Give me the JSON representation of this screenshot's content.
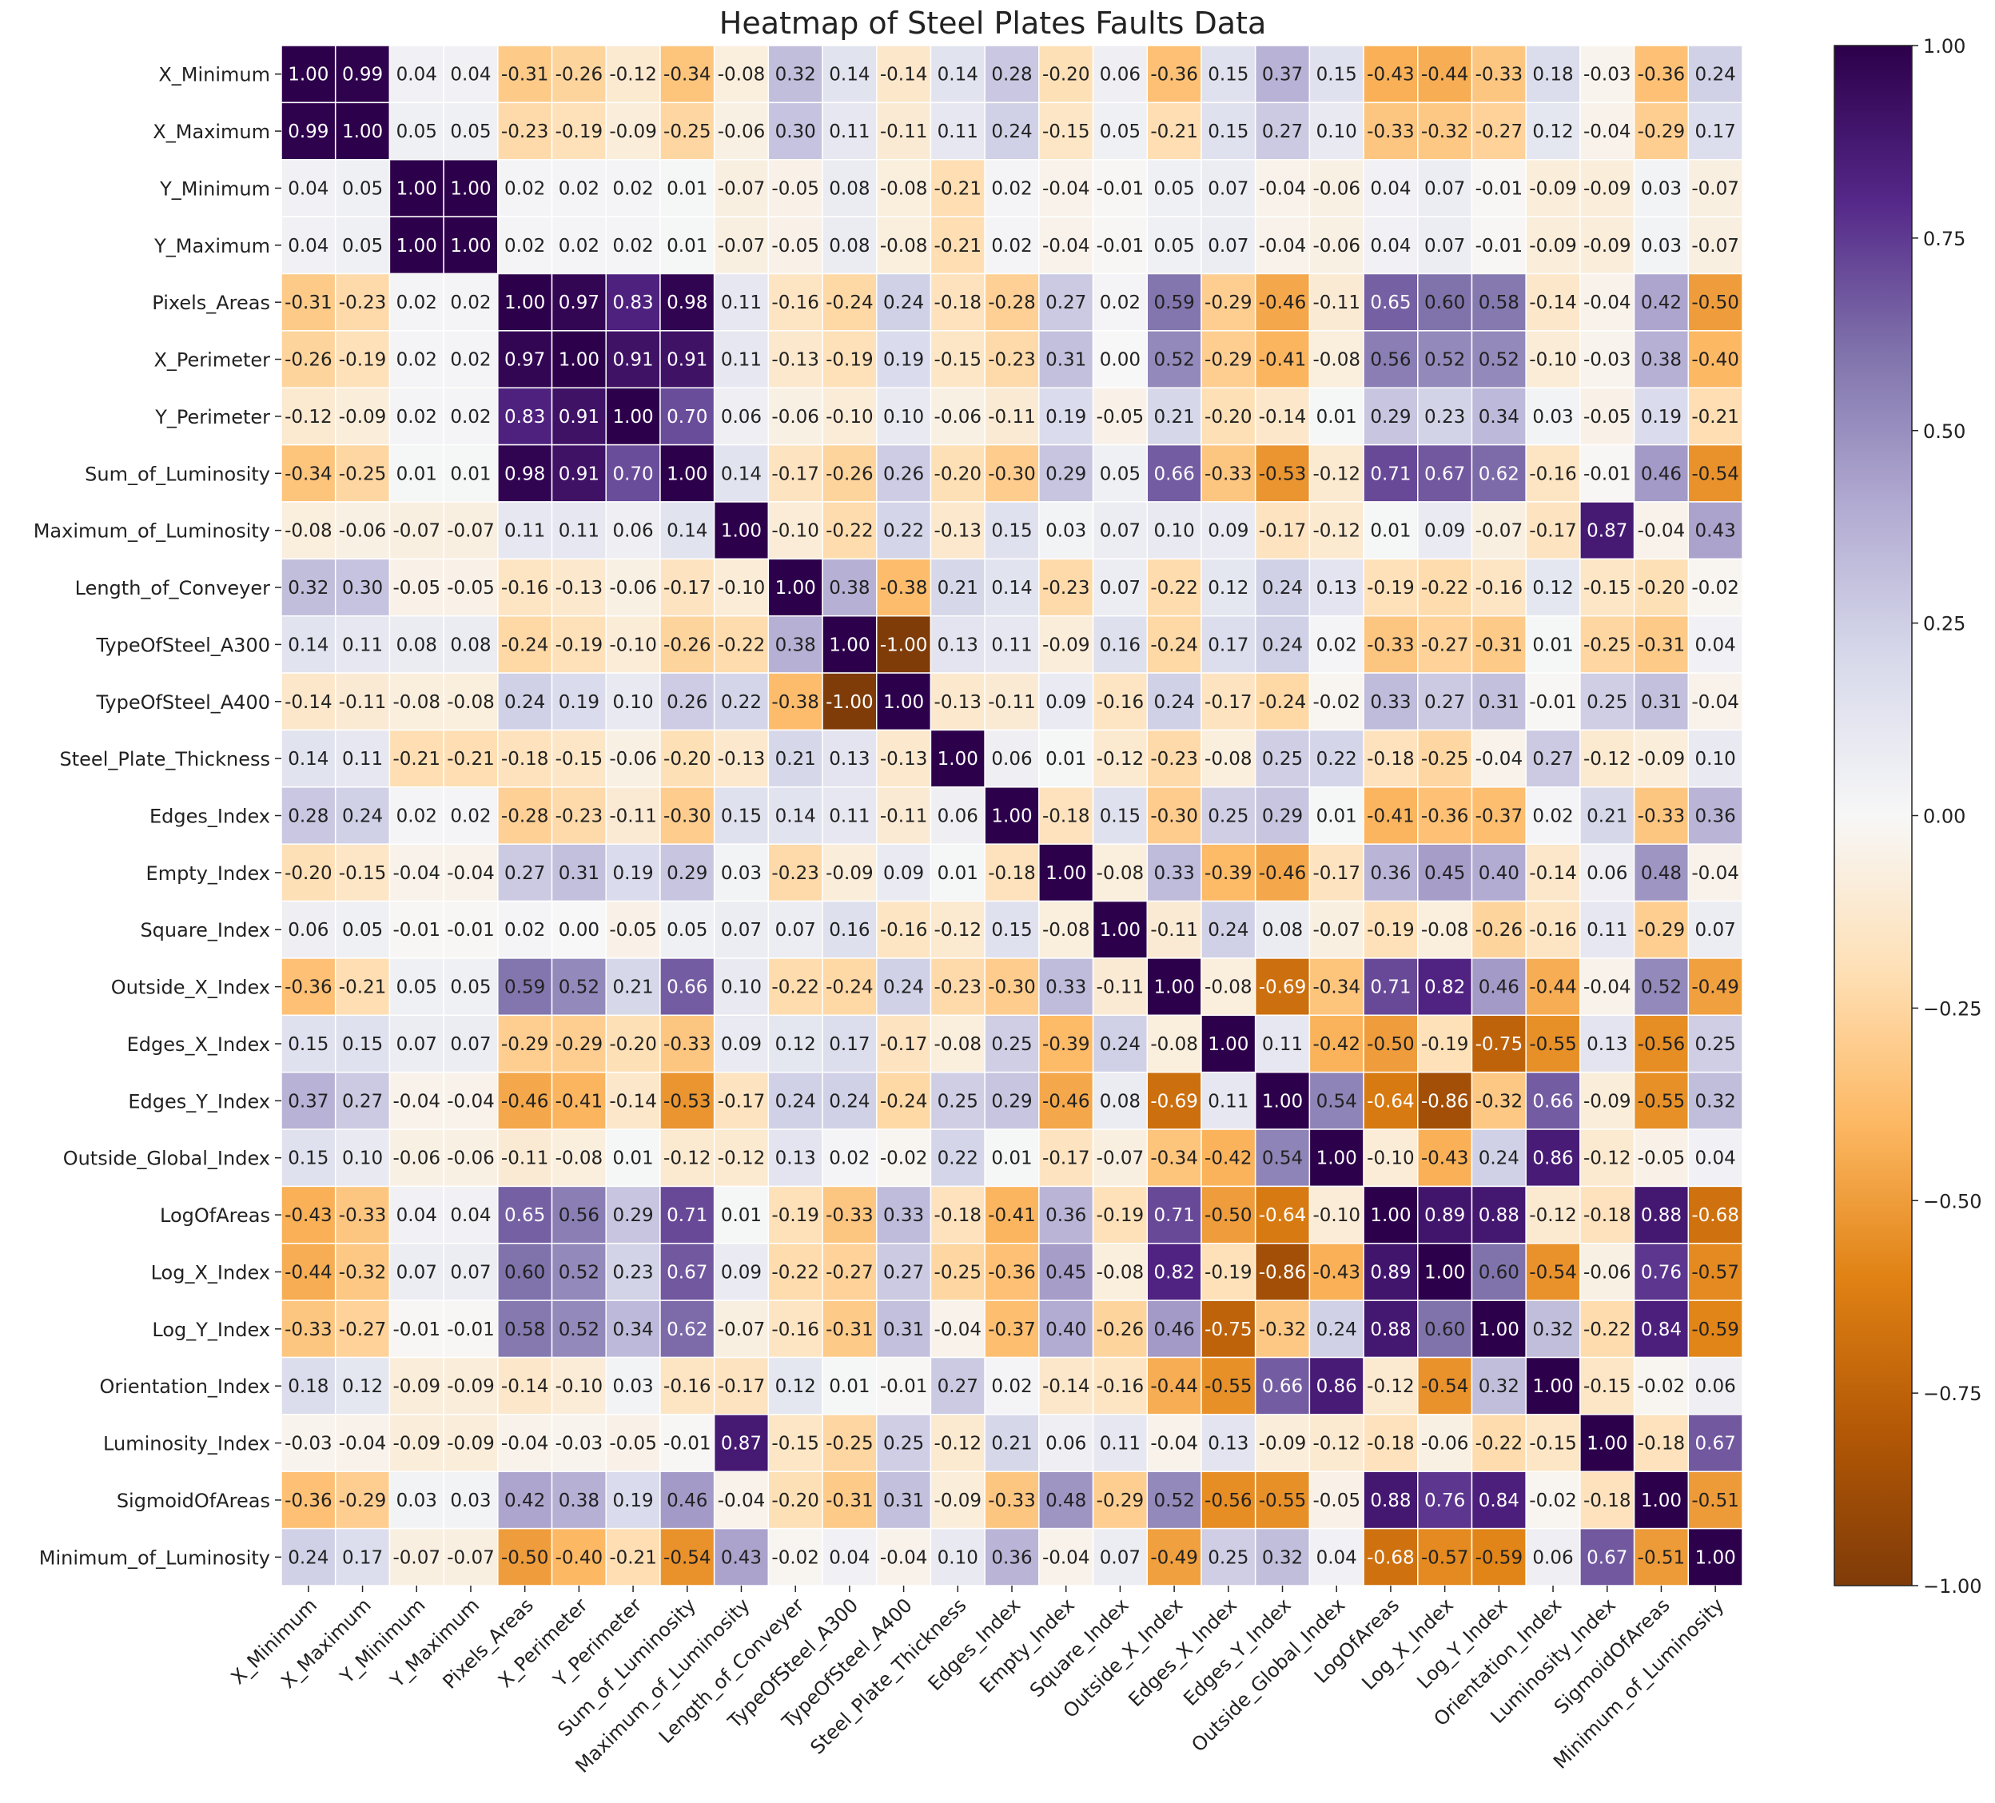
{
  "chart_data": {
    "type": "heatmap",
    "title": "Heatmap of Steel Plates Faults Data",
    "xlabel": "",
    "ylabel": "",
    "colormap": "PuOr",
    "vmin": -1.0,
    "vmax": 1.0,
    "colorbar_ticks": [
      "1.00",
      "0.75",
      "0.50",
      "0.25",
      "0.00",
      "−0.25",
      "−0.50",
      "−0.75",
      "−1.00"
    ],
    "colorbar_tick_values": [
      1.0,
      0.75,
      0.5,
      0.25,
      0.0,
      -0.25,
      -0.5,
      -0.75,
      -1.0
    ],
    "labels": [
      "X_Minimum",
      "X_Maximum",
      "Y_Minimum",
      "Y_Maximum",
      "Pixels_Areas",
      "X_Perimeter",
      "Y_Perimeter",
      "Sum_of_Luminosity",
      "Maximum_of_Luminosity",
      "Length_of_Conveyer",
      "TypeOfSteel_A300",
      "TypeOfSteel_A400",
      "Steel_Plate_Thickness",
      "Edges_Index",
      "Empty_Index",
      "Square_Index",
      "Outside_X_Index",
      "Edges_X_Index",
      "Edges_Y_Index",
      "Outside_Global_Index",
      "LogOfAreas",
      "Log_X_Index",
      "Log_Y_Index",
      "Orientation_Index",
      "Luminosity_Index",
      "SigmoidOfAreas",
      "Minimum_of_Luminosity"
    ],
    "matrix": [
      [
        1.0,
        0.99,
        0.04,
        0.04,
        -0.31,
        -0.26,
        -0.12,
        -0.34,
        -0.08,
        0.32,
        0.14,
        -0.14,
        0.14,
        0.28,
        -0.2,
        0.06,
        -0.36,
        0.15,
        0.37,
        0.15,
        -0.43,
        -0.44,
        -0.33,
        0.18,
        -0.03,
        -0.36,
        0.24
      ],
      [
        0.99,
        1.0,
        0.05,
        0.05,
        -0.23,
        -0.19,
        -0.09,
        -0.25,
        -0.06,
        0.3,
        0.11,
        -0.11,
        0.11,
        0.24,
        -0.15,
        0.05,
        -0.21,
        0.15,
        0.27,
        0.1,
        -0.33,
        -0.32,
        -0.27,
        0.12,
        -0.04,
        -0.29,
        0.17
      ],
      [
        0.04,
        0.05,
        1.0,
        1.0,
        0.02,
        0.02,
        0.02,
        0.01,
        -0.07,
        -0.05,
        0.08,
        -0.08,
        -0.21,
        0.02,
        -0.04,
        -0.01,
        0.05,
        0.07,
        -0.04,
        -0.06,
        0.04,
        0.07,
        -0.01,
        -0.09,
        -0.09,
        0.03,
        -0.07
      ],
      [
        0.04,
        0.05,
        1.0,
        1.0,
        0.02,
        0.02,
        0.02,
        0.01,
        -0.07,
        -0.05,
        0.08,
        -0.08,
        -0.21,
        0.02,
        -0.04,
        -0.01,
        0.05,
        0.07,
        -0.04,
        -0.06,
        0.04,
        0.07,
        -0.01,
        -0.09,
        -0.09,
        0.03,
        -0.07
      ],
      [
        -0.31,
        -0.23,
        0.02,
        0.02,
        1.0,
        0.97,
        0.83,
        0.98,
        0.11,
        -0.16,
        -0.24,
        0.24,
        -0.18,
        -0.28,
        0.27,
        0.02,
        0.59,
        -0.29,
        -0.46,
        -0.11,
        0.65,
        0.6,
        0.58,
        -0.14,
        -0.04,
        0.42,
        -0.5
      ],
      [
        -0.26,
        -0.19,
        0.02,
        0.02,
        0.97,
        1.0,
        0.91,
        0.91,
        0.11,
        -0.13,
        -0.19,
        0.19,
        -0.15,
        -0.23,
        0.31,
        0.0,
        0.52,
        -0.29,
        -0.41,
        -0.08,
        0.56,
        0.52,
        0.52,
        -0.1,
        -0.03,
        0.38,
        -0.4
      ],
      [
        -0.12,
        -0.09,
        0.02,
        0.02,
        0.83,
        0.91,
        1.0,
        0.7,
        0.06,
        -0.06,
        -0.1,
        0.1,
        -0.06,
        -0.11,
        0.19,
        -0.05,
        0.21,
        -0.2,
        -0.14,
        0.01,
        0.29,
        0.23,
        0.34,
        0.03,
        -0.05,
        0.19,
        -0.21
      ],
      [
        -0.34,
        -0.25,
        0.01,
        0.01,
        0.98,
        0.91,
        0.7,
        1.0,
        0.14,
        -0.17,
        -0.26,
        0.26,
        -0.2,
        -0.3,
        0.29,
        0.05,
        0.66,
        -0.33,
        -0.53,
        -0.12,
        0.71,
        0.67,
        0.62,
        -0.16,
        -0.01,
        0.46,
        -0.54
      ],
      [
        -0.08,
        -0.06,
        -0.07,
        -0.07,
        0.11,
        0.11,
        0.06,
        0.14,
        1.0,
        -0.1,
        -0.22,
        0.22,
        -0.13,
        0.15,
        0.03,
        0.07,
        0.1,
        0.09,
        -0.17,
        -0.12,
        0.01,
        0.09,
        -0.07,
        -0.17,
        0.87,
        -0.04,
        0.43
      ],
      [
        0.32,
        0.3,
        -0.05,
        -0.05,
        -0.16,
        -0.13,
        -0.06,
        -0.17,
        -0.1,
        1.0,
        0.38,
        -0.38,
        0.21,
        0.14,
        -0.23,
        0.07,
        -0.22,
        0.12,
        0.24,
        0.13,
        -0.19,
        -0.22,
        -0.16,
        0.12,
        -0.15,
        -0.2,
        -0.02
      ],
      [
        0.14,
        0.11,
        0.08,
        0.08,
        -0.24,
        -0.19,
        -0.1,
        -0.26,
        -0.22,
        0.38,
        1.0,
        -1.0,
        0.13,
        0.11,
        -0.09,
        0.16,
        -0.24,
        0.17,
        0.24,
        0.02,
        -0.33,
        -0.27,
        -0.31,
        0.01,
        -0.25,
        -0.31,
        0.04
      ],
      [
        -0.14,
        -0.11,
        -0.08,
        -0.08,
        0.24,
        0.19,
        0.1,
        0.26,
        0.22,
        -0.38,
        -1.0,
        1.0,
        -0.13,
        -0.11,
        0.09,
        -0.16,
        0.24,
        -0.17,
        -0.24,
        -0.02,
        0.33,
        0.27,
        0.31,
        -0.01,
        0.25,
        0.31,
        -0.04
      ],
      [
        0.14,
        0.11,
        -0.21,
        -0.21,
        -0.18,
        -0.15,
        -0.06,
        -0.2,
        -0.13,
        0.21,
        0.13,
        -0.13,
        1.0,
        0.06,
        0.01,
        -0.12,
        -0.23,
        -0.08,
        0.25,
        0.22,
        -0.18,
        -0.25,
        -0.04,
        0.27,
        -0.12,
        -0.09,
        0.1
      ],
      [
        0.28,
        0.24,
        0.02,
        0.02,
        -0.28,
        -0.23,
        -0.11,
        -0.3,
        0.15,
        0.14,
        0.11,
        -0.11,
        0.06,
        1.0,
        -0.18,
        0.15,
        -0.3,
        0.25,
        0.29,
        0.01,
        -0.41,
        -0.36,
        -0.37,
        0.02,
        0.21,
        -0.33,
        0.36
      ],
      [
        -0.2,
        -0.15,
        -0.04,
        -0.04,
        0.27,
        0.31,
        0.19,
        0.29,
        0.03,
        -0.23,
        -0.09,
        0.09,
        0.01,
        -0.18,
        1.0,
        -0.08,
        0.33,
        -0.39,
        -0.46,
        -0.17,
        0.36,
        0.45,
        0.4,
        -0.14,
        0.06,
        0.48,
        -0.04
      ],
      [
        0.06,
        0.05,
        -0.01,
        -0.01,
        0.02,
        0.0,
        -0.05,
        0.05,
        0.07,
        0.07,
        0.16,
        -0.16,
        -0.12,
        0.15,
        -0.08,
        1.0,
        -0.11,
        0.24,
        0.08,
        -0.07,
        -0.19,
        -0.08,
        -0.26,
        -0.16,
        0.11,
        -0.29,
        0.07
      ],
      [
        -0.36,
        -0.21,
        0.05,
        0.05,
        0.59,
        0.52,
        0.21,
        0.66,
        0.1,
        -0.22,
        -0.24,
        0.24,
        -0.23,
        -0.3,
        0.33,
        -0.11,
        1.0,
        -0.08,
        -0.69,
        -0.34,
        0.71,
        0.82,
        0.46,
        -0.44,
        -0.04,
        0.52,
        -0.49
      ],
      [
        0.15,
        0.15,
        0.07,
        0.07,
        -0.29,
        -0.29,
        -0.2,
        -0.33,
        0.09,
        0.12,
        0.17,
        -0.17,
        -0.08,
        0.25,
        -0.39,
        0.24,
        -0.08,
        1.0,
        0.11,
        -0.42,
        -0.5,
        -0.19,
        -0.75,
        -0.55,
        0.13,
        -0.56,
        0.25
      ],
      [
        0.37,
        0.27,
        -0.04,
        -0.04,
        -0.46,
        -0.41,
        -0.14,
        -0.53,
        -0.17,
        0.24,
        0.24,
        -0.24,
        0.25,
        0.29,
        -0.46,
        0.08,
        -0.69,
        0.11,
        1.0,
        0.54,
        -0.64,
        -0.86,
        -0.32,
        0.66,
        -0.09,
        -0.55,
        0.32
      ],
      [
        0.15,
        0.1,
        -0.06,
        -0.06,
        -0.11,
        -0.08,
        0.01,
        -0.12,
        -0.12,
        0.13,
        0.02,
        -0.02,
        0.22,
        0.01,
        -0.17,
        -0.07,
        -0.34,
        -0.42,
        0.54,
        1.0,
        -0.1,
        -0.43,
        0.24,
        0.86,
        -0.12,
        -0.05,
        0.04
      ],
      [
        -0.43,
        -0.33,
        0.04,
        0.04,
        0.65,
        0.56,
        0.29,
        0.71,
        0.01,
        -0.19,
        -0.33,
        0.33,
        -0.18,
        -0.41,
        0.36,
        -0.19,
        0.71,
        -0.5,
        -0.64,
        -0.1,
        1.0,
        0.89,
        0.88,
        -0.12,
        -0.18,
        0.88,
        -0.68
      ],
      [
        -0.44,
        -0.32,
        0.07,
        0.07,
        0.6,
        0.52,
        0.23,
        0.67,
        0.09,
        -0.22,
        -0.27,
        0.27,
        -0.25,
        -0.36,
        0.45,
        -0.08,
        0.82,
        -0.19,
        -0.86,
        -0.43,
        0.89,
        1.0,
        0.6,
        -0.54,
        -0.06,
        0.76,
        -0.57
      ],
      [
        -0.33,
        -0.27,
        -0.01,
        -0.01,
        0.58,
        0.52,
        0.34,
        0.62,
        -0.07,
        -0.16,
        -0.31,
        0.31,
        -0.04,
        -0.37,
        0.4,
        -0.26,
        0.46,
        -0.75,
        -0.32,
        0.24,
        0.88,
        0.6,
        1.0,
        0.32,
        -0.22,
        0.84,
        -0.59
      ],
      [
        0.18,
        0.12,
        -0.09,
        -0.09,
        -0.14,
        -0.1,
        0.03,
        -0.16,
        -0.17,
        0.12,
        0.01,
        -0.01,
        0.27,
        0.02,
        -0.14,
        -0.16,
        -0.44,
        -0.55,
        0.66,
        0.86,
        -0.12,
        -0.54,
        0.32,
        1.0,
        -0.15,
        -0.02,
        0.06
      ],
      [
        -0.03,
        -0.04,
        -0.09,
        -0.09,
        -0.04,
        -0.03,
        -0.05,
        -0.01,
        0.87,
        -0.15,
        -0.25,
        0.25,
        -0.12,
        0.21,
        0.06,
        0.11,
        -0.04,
        0.13,
        -0.09,
        -0.12,
        -0.18,
        -0.06,
        -0.22,
        -0.15,
        1.0,
        -0.18,
        0.67
      ],
      [
        -0.36,
        -0.29,
        0.03,
        0.03,
        0.42,
        0.38,
        0.19,
        0.46,
        -0.04,
        -0.2,
        -0.31,
        0.31,
        -0.09,
        -0.33,
        0.48,
        -0.29,
        0.52,
        -0.56,
        -0.55,
        -0.05,
        0.88,
        0.76,
        0.84,
        -0.02,
        -0.18,
        1.0,
        -0.51
      ],
      [
        0.24,
        0.17,
        -0.07,
        -0.07,
        -0.5,
        -0.4,
        -0.21,
        -0.54,
        0.43,
        -0.02,
        0.04,
        -0.04,
        0.1,
        0.36,
        -0.04,
        0.07,
        -0.49,
        0.25,
        0.32,
        0.04,
        -0.68,
        -0.57,
        -0.59,
        0.06,
        0.67,
        -0.51,
        1.0
      ]
    ]
  }
}
